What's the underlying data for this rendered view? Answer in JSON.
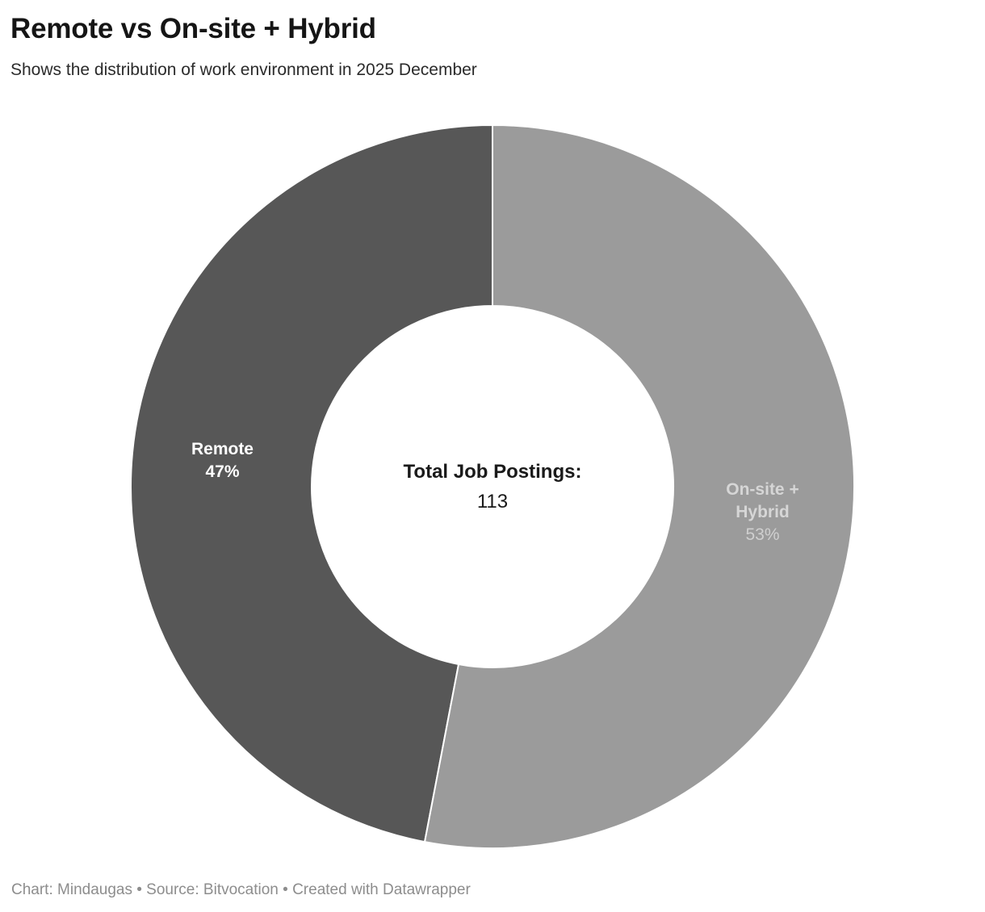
{
  "header": {
    "title": "Remote vs On-site + Hybrid",
    "subtitle": "Shows the distribution of work environment in 2025 December"
  },
  "chart_data": {
    "type": "pie",
    "subtype": "donut",
    "title": "Remote vs On-site + Hybrid",
    "inner_radius_ratio": 0.5,
    "start_angle_deg": 0,
    "direction": "counterclockwise-from-top",
    "center_label": {
      "title": "Total Job Postings:",
      "value": "113"
    },
    "segments": [
      {
        "label": "Remote",
        "label_lines": [
          "Remote"
        ],
        "pct_label": "47%",
        "value_pct": 47,
        "color": "#575757",
        "text_color": "#ffffff"
      },
      {
        "label": "On-site + Hybrid",
        "label_lines": [
          "On-site +",
          "Hybrid"
        ],
        "pct_label": "53%",
        "value_pct": 53,
        "color": "#9b9b9b",
        "text_color": "#d6d6d6"
      }
    ],
    "separator_color": "#ffffff",
    "legend_position": "inside-slices"
  },
  "footer": {
    "text": "Chart: Mindaugas • Source: Bitvocation • Created with Datawrapper"
  }
}
